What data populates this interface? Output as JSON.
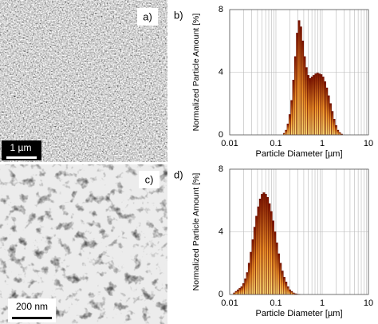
{
  "images": [
    {
      "label": "a)",
      "scale_bar": "1 µm"
    },
    {
      "label": "c)",
      "scale_bar": "200 nm"
    }
  ],
  "chart_data": [
    {
      "type": "histogram",
      "panel_label": "b)",
      "xlabel": "Particle Diameter [µm]",
      "ylabel": "Normalized Particle Amount [%]",
      "log_x": true,
      "grid": true,
      "minor_grid": true,
      "color": "#6b1000",
      "xlim": [
        0.01,
        10
      ],
      "xticks": [
        0.01,
        0.1,
        1,
        10
      ],
      "ylim": [
        0,
        8
      ],
      "yticks": [
        0,
        4,
        8
      ],
      "bins": [
        0.1445,
        0.1585,
        0.1738,
        0.1905,
        0.2089,
        0.2291,
        0.2512,
        0.2754,
        0.302,
        0.3311,
        0.3631,
        0.3981,
        0.4365,
        0.4786,
        0.5248,
        0.5754,
        0.631,
        0.6918,
        0.7586,
        0.8318,
        0.912,
        1.0,
        1.096,
        1.202,
        1.318,
        1.445,
        1.585,
        1.738,
        1.905,
        2.089,
        2.291,
        2.512,
        2.754
      ],
      "values": [
        0.1,
        0.3,
        0.7,
        1.3,
        2.2,
        3.5,
        5.0,
        6.5,
        7.3,
        6.9,
        6.0,
        5.0,
        4.3,
        3.8,
        3.6,
        3.7,
        3.8,
        3.9,
        3.95,
        3.9,
        3.85,
        3.7,
        3.4,
        3.0,
        2.5,
        2.0,
        1.5,
        1.0,
        0.6,
        0.3,
        0.15,
        0.05
      ]
    },
    {
      "type": "histogram",
      "panel_label": "d)",
      "xlabel": "Particle Diameter [µm]",
      "ylabel": "Normalized Particle Amount [%]",
      "log_x": true,
      "grid": true,
      "minor_grid": true,
      "color": "#6b1000",
      "xlim": [
        0.01,
        10
      ],
      "xticks": [
        0.01,
        0.1,
        1,
        10
      ],
      "ylim": [
        0,
        8
      ],
      "yticks": [
        0,
        4,
        8
      ],
      "bins": [
        0.01202,
        0.01318,
        0.01445,
        0.01585,
        0.01738,
        0.01905,
        0.02089,
        0.02291,
        0.02512,
        0.02754,
        0.0302,
        0.03311,
        0.03631,
        0.03981,
        0.04365,
        0.04786,
        0.05248,
        0.05754,
        0.0631,
        0.06918,
        0.07586,
        0.08318,
        0.0912,
        0.1,
        0.1096,
        0.1202,
        0.1318,
        0.1445,
        0.1585,
        0.1738,
        0.1905,
        0.2089,
        0.2291,
        0.2512,
        0.2754,
        0.302,
        0.3311
      ],
      "values": [
        0.1,
        0.2,
        0.3,
        0.4,
        0.5,
        0.7,
        1.0,
        1.4,
        2.0,
        2.7,
        3.5,
        4.3,
        5.0,
        5.6,
        6.1,
        6.4,
        6.5,
        6.4,
        6.2,
        5.8,
        5.3,
        4.7,
        4.0,
        3.3,
        2.6,
        2.0,
        1.5,
        1.1,
        0.8,
        0.5,
        0.3,
        0.2,
        0.1,
        0.05,
        0.02,
        0.01
      ]
    }
  ]
}
